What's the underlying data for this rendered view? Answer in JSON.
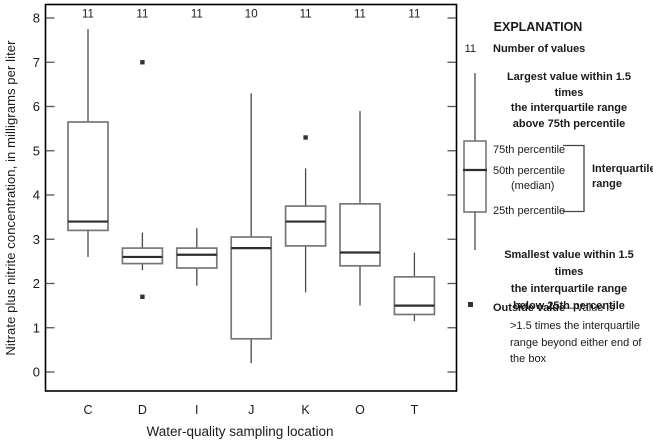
{
  "chart_data": {
    "type": "boxplot",
    "xlabel": "Water-quality sampling location",
    "ylabel": "Nitrate plus nitrite concentration, in milligrams per liter",
    "ylim": [
      0,
      8
    ],
    "yticks": [
      0,
      1,
      2,
      3,
      4,
      5,
      6,
      7,
      8
    ],
    "categories": [
      "C",
      "D",
      "I",
      "J",
      "K",
      "O",
      "T"
    ],
    "counts": [
      "11",
      "11",
      "11",
      "10",
      "11",
      "11",
      "11"
    ],
    "series": [
      {
        "location": "C",
        "n": 11,
        "whisker_low": 2.6,
        "q1": 3.2,
        "median": 3.4,
        "q3": 5.65,
        "whisker_high": 7.75,
        "outliers": []
      },
      {
        "location": "D",
        "n": 11,
        "whisker_low": 2.3,
        "q1": 2.45,
        "median": 2.6,
        "q3": 2.8,
        "whisker_high": 3.15,
        "outliers": [
          7.0,
          1.7
        ]
      },
      {
        "location": "I",
        "n": 11,
        "whisker_low": 1.95,
        "q1": 2.35,
        "median": 2.65,
        "q3": 2.8,
        "whisker_high": 3.25,
        "outliers": []
      },
      {
        "location": "J",
        "n": 10,
        "whisker_low": 0.2,
        "q1": 0.75,
        "median": 2.8,
        "q3": 3.05,
        "whisker_high": 6.3,
        "outliers": []
      },
      {
        "location": "K",
        "n": 11,
        "whisker_low": 1.8,
        "q1": 2.85,
        "median": 3.4,
        "q3": 3.75,
        "whisker_high": 4.6,
        "outliers": [
          5.3
        ]
      },
      {
        "location": "O",
        "n": 11,
        "whisker_low": 1.5,
        "q1": 2.4,
        "median": 2.7,
        "q3": 3.8,
        "whisker_high": 5.9,
        "outliers": []
      },
      {
        "location": "T",
        "n": 11,
        "whisker_low": 1.15,
        "q1": 1.3,
        "median": 1.5,
        "q3": 2.15,
        "whisker_high": 2.7,
        "outliers": []
      }
    ],
    "grid": false,
    "legend_position": "right"
  },
  "colors": {
    "axis": "#000000",
    "tick": "#555555",
    "box_stroke": "#777777",
    "box_fill": "#ffffff",
    "median": "#2d2d2d",
    "whisker": "#4a4a4a",
    "outlier": "#333333",
    "text": "#1a1a1a"
  },
  "legend": {
    "title": "EXPLANATION",
    "count_symbol": "11",
    "count_label": "Number of values",
    "upper_whisker": {
      "line1": "Largest value within 1.5 times",
      "line2": "the interquartile range",
      "line3": "above 75th percentile"
    },
    "p75": "75th percentile",
    "p50a": "50th percentile",
    "p50b": "(median)",
    "p25": "25th percentile",
    "iqr": {
      "line1": "Interquartile",
      "line2": "range"
    },
    "lower_whisker": {
      "line1": "Smallest value within 1.5 times",
      "line2": "the interquartile range",
      "line3": "below 25th percentile"
    },
    "outside_bold": "Outside value",
    "outside_rest": "—Value is",
    "outside": {
      "line1": ">1.5 times the interquartile",
      "line2": "range beyond either end of",
      "line3": "the box"
    }
  }
}
